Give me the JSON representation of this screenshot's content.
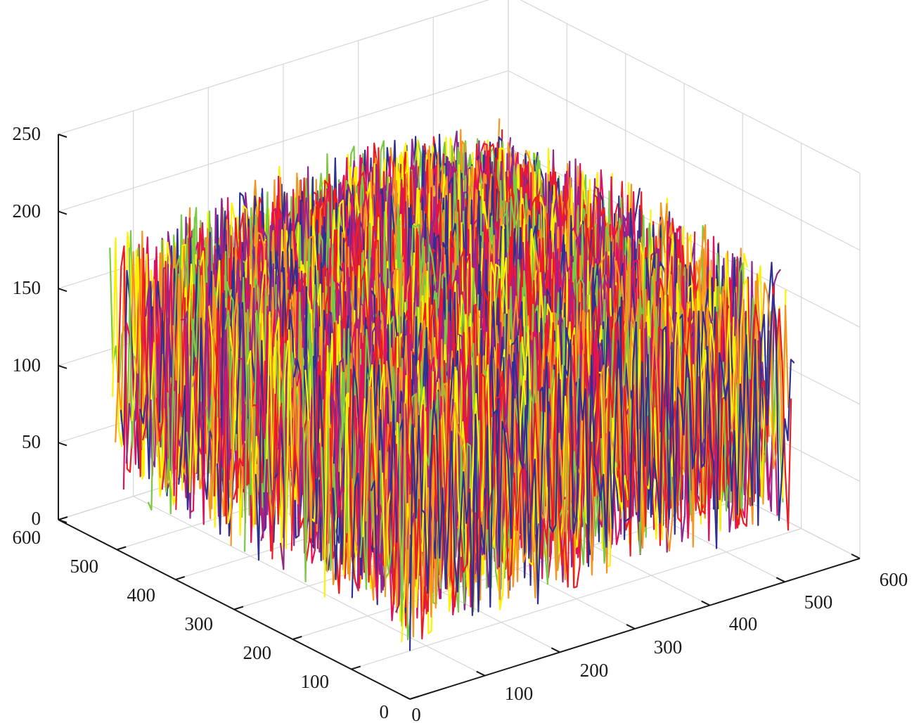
{
  "chart_data": {
    "type": "line",
    "subtype": "3d-stacked-lines (plot3 of image rows)",
    "title": "",
    "xlabel": "",
    "ylabel": "",
    "zlabel": "",
    "xlim": [
      0,
      600
    ],
    "ylim": [
      0,
      600
    ],
    "zlim": [
      0,
      250
    ],
    "x_ticks": [
      "0",
      "100",
      "200",
      "300",
      "400",
      "500",
      "600"
    ],
    "y_ticks": [
      "0",
      "100",
      "200",
      "300",
      "400",
      "500",
      "600"
    ],
    "z_ticks": [
      "0",
      "50",
      "100",
      "150",
      "200",
      "250"
    ],
    "grid": true,
    "legend": "none",
    "series_colors": [
      "#2e3192",
      "#ed1c24",
      "#f7941d",
      "#fff200",
      "#7ac943",
      "#92278f",
      "#e0115f"
    ],
    "data_extent": {
      "x": [
        0,
        512
      ],
      "y": [
        0,
        512
      ],
      "z": [
        0,
        240
      ]
    },
    "series_count": 512,
    "series_note": "dense random pixel-intensity curves; values range 20-240"
  }
}
